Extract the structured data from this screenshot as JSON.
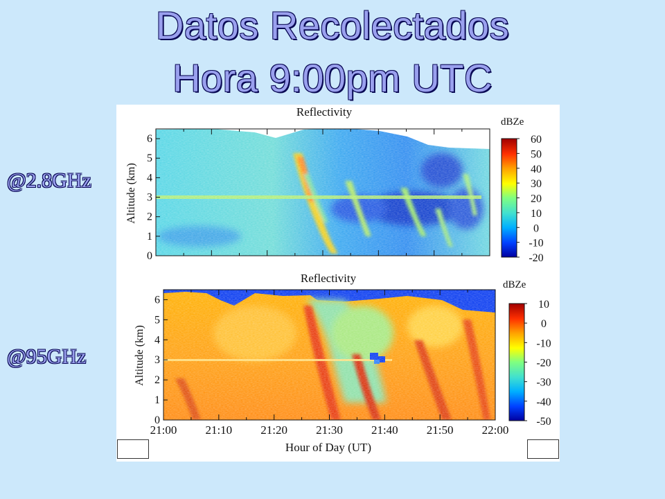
{
  "slide": {
    "title_line1": "Datos Recolectados",
    "title_line2": "Hora 9:00pm UTC",
    "label_top": "@2.8GHz",
    "label_bottom": "@95GHz"
  },
  "colors": {
    "background": "#cce8fb",
    "title_fill": "#9aa0ee",
    "title_outline": "#0a0a55"
  },
  "chart_data": [
    {
      "type": "heatmap",
      "title": "Reflectivity",
      "xlabel": "",
      "ylabel": "Altitude (km)",
      "xlim": [
        "21:00",
        "22:00"
      ],
      "ylim": [
        0,
        6.5
      ],
      "yticks": [
        "0",
        "1",
        "2",
        "3",
        "4",
        "5",
        "6"
      ],
      "colorbar_label": "dBZe",
      "colorbar_ticks": [
        "60",
        "50",
        "40",
        "30",
        "20",
        "10",
        "0",
        "-10",
        "-20"
      ],
      "colorbar_range": [
        -20,
        60
      ],
      "colormap": [
        "#0000a0",
        "#0040ff",
        "#00b0ff",
        "#40e0d0",
        "#80ff80",
        "#ffff00",
        "#ffa000",
        "#ff3000",
        "#a00000"
      ]
    },
    {
      "type": "heatmap",
      "title": "Reflectivity",
      "xlabel": "Hour of Day (UT)",
      "ylabel": "Altitude (km)",
      "xlim": [
        "21:00",
        "22:00"
      ],
      "xticks": [
        "21:00",
        "21:10",
        "21:20",
        "21:30",
        "21:40",
        "21:50",
        "22:00"
      ],
      "ylim": [
        0,
        6.5
      ],
      "yticks": [
        "0",
        "1",
        "2",
        "3",
        "4",
        "5",
        "6"
      ],
      "colorbar_label": "dBZe",
      "colorbar_ticks": [
        "10",
        "0",
        "-10",
        "-20",
        "-30",
        "-40",
        "-50"
      ],
      "colorbar_range": [
        -50,
        10
      ],
      "colormap": [
        "#0000a0",
        "#0040ff",
        "#00b0ff",
        "#40e0d0",
        "#80ff80",
        "#ffff00",
        "#ffa000",
        "#ff3000",
        "#a00000"
      ]
    }
  ]
}
